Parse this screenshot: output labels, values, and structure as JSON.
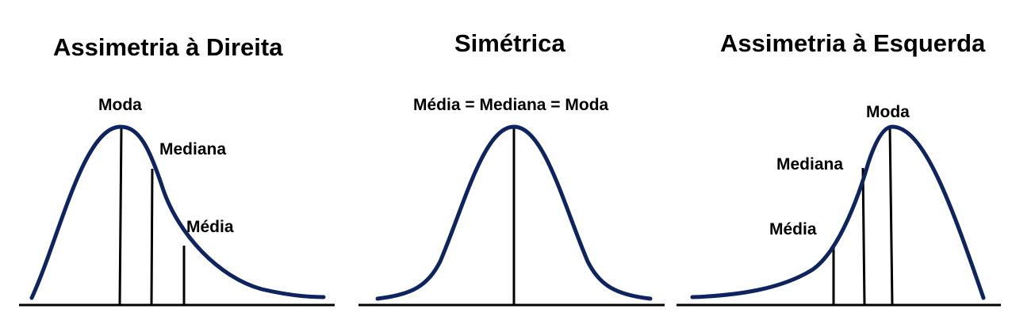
{
  "colors": {
    "curve": "#0d2461",
    "axis": "#000000",
    "text": "#000000",
    "background": "#ffffff"
  },
  "panels": [
    {
      "title": "Assimetria à Direita",
      "labels": {
        "moda": "Moda",
        "mediana": "Mediana",
        "media": "Média"
      }
    },
    {
      "title": "Simétrica",
      "labels": {
        "combined": "Média = Mediana = Moda"
      }
    },
    {
      "title": "Assimetria à Esquerda",
      "labels": {
        "moda": "Moda",
        "mediana": "Mediana",
        "media": "Média"
      }
    }
  ]
}
